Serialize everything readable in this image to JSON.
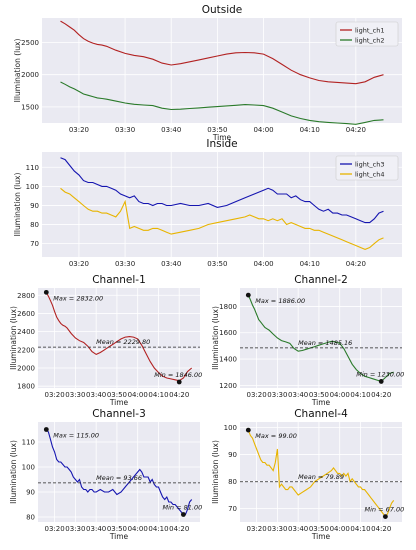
{
  "chart_data": [
    {
      "id": "outside",
      "type": "line",
      "title": "Outside",
      "xlabel": "Time",
      "ylabel": "Illumination (lux)",
      "xticks": [
        "03:20",
        "03:30",
        "03:40",
        "03:50",
        "04:00",
        "04:10",
        "04:20"
      ],
      "yticks": [
        "1500",
        "2000",
        "2500"
      ],
      "ylim": [
        1250,
        2880
      ],
      "legend": "top-right",
      "series": [
        {
          "name": "light_ch1",
          "color": "#b22222",
          "x": [
            0,
            1,
            2,
            3,
            4,
            5,
            6,
            7,
            8,
            9,
            10,
            12,
            14,
            16,
            18,
            20,
            22,
            24,
            26,
            28,
            30,
            32,
            34,
            36,
            38,
            40,
            42,
            44,
            46,
            48,
            50,
            52,
            54,
            56,
            58,
            60,
            62,
            64,
            66,
            68,
            70
          ],
          "y": [
            2832,
            2790,
            2740,
            2690,
            2620,
            2560,
            2520,
            2490,
            2470,
            2460,
            2440,
            2380,
            2330,
            2300,
            2280,
            2240,
            2180,
            2150,
            2170,
            2200,
            2230,
            2260,
            2290,
            2320,
            2340,
            2345,
            2340,
            2320,
            2250,
            2160,
            2070,
            2000,
            1950,
            1910,
            1890,
            1880,
            1870,
            1860,
            1890,
            1960,
            2000
          ]
        },
        {
          "name": "light_ch2",
          "color": "#2a7a2a",
          "x": [
            0,
            1,
            2,
            3,
            4,
            5,
            6,
            7,
            8,
            9,
            10,
            12,
            14,
            16,
            18,
            20,
            22,
            24,
            26,
            28,
            30,
            32,
            34,
            36,
            38,
            40,
            42,
            44,
            46,
            48,
            50,
            52,
            54,
            56,
            58,
            60,
            62,
            64,
            66,
            68,
            70
          ],
          "y": [
            1886,
            1850,
            1810,
            1780,
            1740,
            1700,
            1680,
            1660,
            1640,
            1630,
            1620,
            1590,
            1560,
            1540,
            1530,
            1520,
            1480,
            1460,
            1465,
            1475,
            1485,
            1495,
            1505,
            1515,
            1525,
            1535,
            1530,
            1520,
            1480,
            1420,
            1360,
            1320,
            1290,
            1270,
            1260,
            1250,
            1240,
            1230,
            1260,
            1290,
            1300
          ]
        }
      ]
    },
    {
      "id": "inside",
      "type": "line",
      "title": "Inside",
      "xlabel": "",
      "ylabel": "Illumination (lux)",
      "xticks": [
        "03:20",
        "03:30",
        "03:40",
        "03:50",
        "04:00",
        "04:10",
        "04:20"
      ],
      "yticks": [
        "70",
        "80",
        "90",
        "100",
        "110"
      ],
      "ylim": [
        63,
        118
      ],
      "legend": "top-right",
      "series": [
        {
          "name": "light_ch3",
          "color": "#1515b0",
          "x": [
            0,
            1,
            2,
            3,
            4,
            5,
            6,
            7,
            8,
            9,
            10,
            11,
            12,
            13,
            14,
            15,
            16,
            17,
            18,
            19,
            20,
            21,
            22,
            23,
            24,
            26,
            28,
            30,
            32,
            34,
            36,
            38,
            40,
            41,
            42,
            43,
            44,
            45,
            46,
            47,
            48,
            49,
            50,
            51,
            52,
            53,
            54,
            55,
            56,
            57,
            58,
            59,
            60,
            61,
            62,
            63,
            64,
            65,
            66,
            67,
            68,
            69,
            70
          ],
          "y": [
            115,
            114,
            111,
            108,
            106,
            103,
            102,
            102,
            101,
            100,
            100,
            99,
            98,
            96,
            95,
            94,
            95,
            92,
            91,
            91,
            90,
            91,
            91,
            90,
            90,
            91,
            90,
            90,
            91,
            89,
            90,
            92,
            94,
            95,
            96,
            97,
            98,
            99,
            98,
            96,
            96,
            96,
            94,
            95,
            93,
            92,
            92,
            90,
            88,
            87,
            88,
            86,
            86,
            85,
            85,
            84,
            83,
            82,
            81,
            81,
            83,
            86,
            87
          ]
        },
        {
          "name": "light_ch4",
          "color": "#e8b400",
          "x": [
            0,
            1,
            2,
            3,
            4,
            5,
            6,
            7,
            8,
            9,
            10,
            11,
            12,
            13,
            14,
            15,
            16,
            17,
            18,
            19,
            20,
            21,
            22,
            23,
            24,
            26,
            28,
            30,
            32,
            34,
            36,
            38,
            40,
            41,
            42,
            43,
            44,
            45,
            46,
            47,
            48,
            49,
            50,
            51,
            52,
            53,
            54,
            55,
            56,
            57,
            58,
            59,
            60,
            61,
            62,
            63,
            64,
            65,
            66,
            67,
            68,
            69,
            70
          ],
          "y": [
            99,
            97,
            96,
            94,
            92,
            90,
            88,
            87,
            87,
            86,
            86,
            85,
            84,
            87,
            92,
            78,
            79,
            78,
            77,
            77,
            78,
            78,
            77,
            76,
            75,
            76,
            77,
            78,
            80,
            81,
            82,
            83,
            84,
            85,
            84,
            83,
            83,
            82,
            83,
            82,
            83,
            80,
            81,
            80,
            79,
            78,
            78,
            77,
            77,
            76,
            75,
            74,
            73,
            72,
            71,
            70,
            69,
            68,
            67,
            68,
            70,
            72,
            73
          ]
        }
      ]
    },
    {
      "id": "ch1",
      "type": "line",
      "title": "Channel-1",
      "xlabel": "Time",
      "ylabel": "Illumination (lux)",
      "xticks": [
        "03:20",
        "03:30",
        "03:40",
        "03:50",
        "04:00",
        "04:10",
        "04:20"
      ],
      "yticks": [
        "1800",
        "2000",
        "2200",
        "2400",
        "2600",
        "2800"
      ],
      "ylim": [
        1780,
        2880
      ],
      "color": "#b22222",
      "max": {
        "label": "Max = 2832.00",
        "x": 0,
        "y": 2832
      },
      "min": {
        "label": "Min = 1846.00",
        "x": 64,
        "y": 1846
      },
      "mean": {
        "label": "Mean = 2229.80",
        "y": 2229.8
      }
    },
    {
      "id": "ch2",
      "type": "line",
      "title": "Channel-2",
      "xlabel": "Time",
      "ylabel": "Illumination (lux)",
      "xticks": [
        "03:20",
        "03:30",
        "03:40",
        "03:50",
        "04:00",
        "04:10",
        "04:20"
      ],
      "yticks": [
        "1200",
        "1400",
        "1600",
        "1800"
      ],
      "ylim": [
        1180,
        1940
      ],
      "color": "#2a7a2a",
      "max": {
        "label": "Max = 1886.00",
        "x": 0,
        "y": 1886
      },
      "min": {
        "label": "Min = 1230.00",
        "x": 64,
        "y": 1230
      },
      "mean": {
        "label": "Mean = 1485.16",
        "y": 1485.16
      }
    },
    {
      "id": "ch3",
      "type": "line",
      "title": "Channel-3",
      "xlabel": "Time",
      "ylabel": "Illumination (lux)",
      "xticks": [
        "03:20",
        "03:30",
        "03:40",
        "03:50",
        "04:00",
        "04:10",
        "04:20"
      ],
      "yticks": [
        "80",
        "90",
        "100",
        "110"
      ],
      "ylim": [
        78,
        118
      ],
      "color": "#1515b0",
      "max": {
        "label": "Max = 115.00",
        "x": 0,
        "y": 115
      },
      "min": {
        "label": "Min = 81.00",
        "x": 66,
        "y": 81
      },
      "mean": {
        "label": "Mean = 93.66",
        "y": 93.66
      }
    },
    {
      "id": "ch4",
      "type": "line",
      "title": "Channel-4",
      "xlabel": "Time",
      "ylabel": "Illumination (lux)",
      "xticks": [
        "03:20",
        "03:30",
        "03:40",
        "03:50",
        "04:00",
        "04:10",
        "04:20"
      ],
      "yticks": [
        "70",
        "80",
        "90",
        "100"
      ],
      "ylim": [
        65,
        102
      ],
      "color": "#e8b400",
      "max": {
        "label": "Max = 99.00",
        "x": 0,
        "y": 99
      },
      "min": {
        "label": "Min = 67.00",
        "x": 66,
        "y": 67
      },
      "mean": {
        "label": "Mean = 79.89",
        "y": 79.89
      }
    }
  ]
}
